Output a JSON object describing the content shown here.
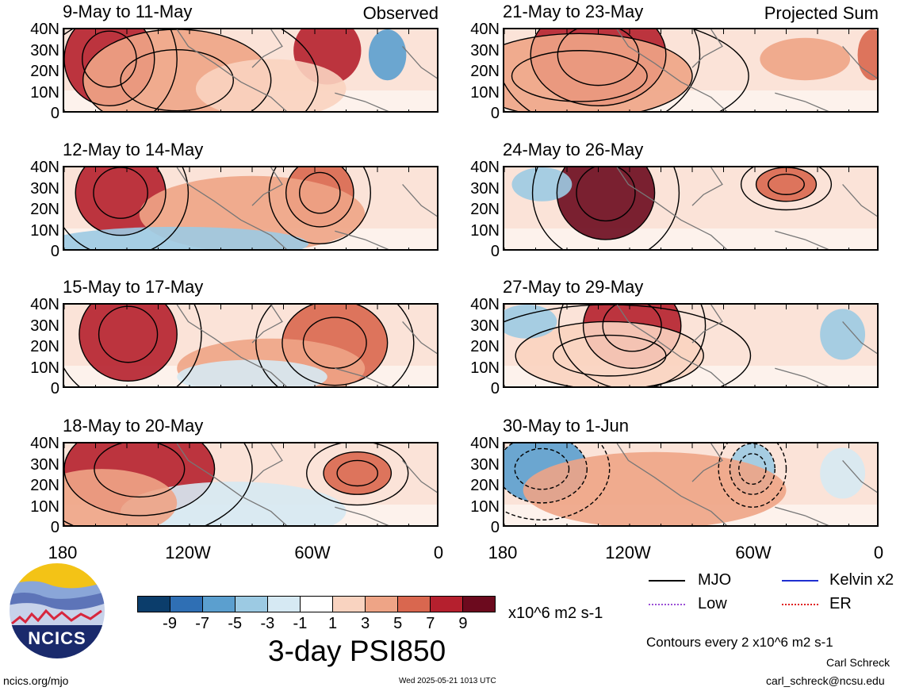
{
  "panels": [
    {
      "title": "9-May to 11-May",
      "tag": "Observed"
    },
    {
      "title": "21-May to 23-May",
      "tag": "Projected Sum"
    },
    {
      "title": "12-May to 14-May",
      "tag": ""
    },
    {
      "title": "24-May to 26-May",
      "tag": ""
    },
    {
      "title": "15-May to 17-May",
      "tag": ""
    },
    {
      "title": "27-May to 29-May",
      "tag": ""
    },
    {
      "title": "18-May to 20-May",
      "tag": ""
    },
    {
      "title": "30-May to 1-Jun",
      "tag": ""
    }
  ],
  "lat_labels": [
    "40N",
    "30N",
    "20N",
    "10N",
    "0"
  ],
  "lon_labels": [
    "180",
    "120W",
    "60W",
    "0"
  ],
  "colorbar": {
    "labels": [
      "-9",
      "-7",
      "-5",
      "-3",
      "-1",
      "1",
      "3",
      "5",
      "7",
      "9"
    ],
    "colors": [
      "#0b3d6b",
      "#2f6fb4",
      "#5b9fcf",
      "#9ccae3",
      "#d6e9f3",
      "#ffffff",
      "#f9d3c0",
      "#eea486",
      "#d9674f",
      "#b5202e",
      "#6c0a1e"
    ],
    "units": "x10^6 m2 s-1"
  },
  "main_title": "3-day PSI850",
  "legend": [
    {
      "label": "MJO",
      "color": "#000000",
      "style": "solid"
    },
    {
      "label": "Kelvin x2",
      "color": "#1f2fd1",
      "style": "solid"
    },
    {
      "label": "Low",
      "color": "#9b4fd6",
      "style": "dotted"
    },
    {
      "label": "ER",
      "color": "#e02020",
      "style": "dotted"
    }
  ],
  "contour_note": "Contours every 2 x10^6 m2 s-1",
  "author": "Carl Schreck",
  "email": "carl_schreck@ncsu.edu",
  "site": "ncics.org/mjo",
  "timestamp": "Wed 2025-05-21 1013 UTC",
  "logo_text": "NCICS"
}
